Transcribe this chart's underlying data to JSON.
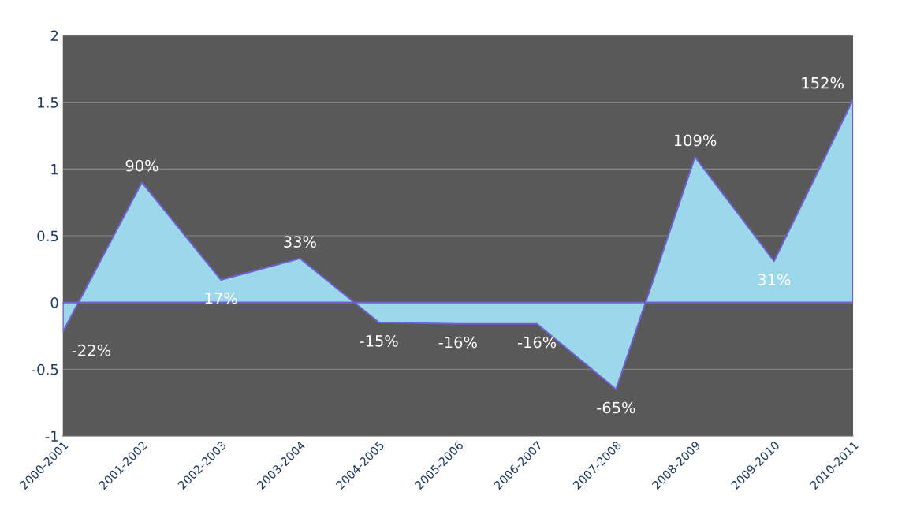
{
  "chart_data": {
    "type": "area",
    "categories": [
      "2000-2001",
      "2001-2002",
      "2002-2003",
      "2003-2004",
      "2004-2005",
      "2005-2006",
      "2006-2007",
      "2007-2008",
      "2008-2009",
      "2009-2010",
      "2010-2011"
    ],
    "values": [
      -0.22,
      0.9,
      0.17,
      0.33,
      -0.15,
      -0.16,
      -0.16,
      -0.65,
      1.09,
      0.31,
      1.52
    ],
    "value_labels": [
      "-22%",
      "90%",
      "17%",
      "33%",
      "-15%",
      "-16%",
      "-16%",
      "-65%",
      "109%",
      "31%",
      "152%"
    ],
    "color": "#9dd8ea",
    "ylim": [
      -1,
      2
    ],
    "yticks": [
      -1,
      -0.5,
      0,
      0.5,
      1,
      1.5,
      2
    ],
    "grid": "y",
    "legend": false
  }
}
